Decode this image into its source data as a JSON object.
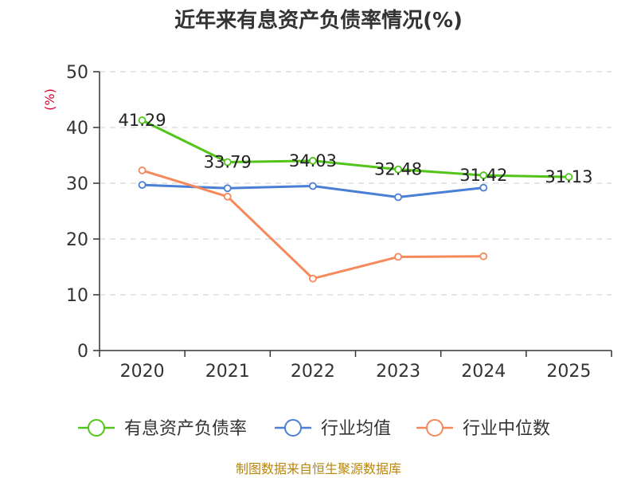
{
  "chart_data": {
    "type": "line",
    "title": "近年来有息资产负债率情况(%)",
    "ylabel": "(%)",
    "xlabel": "",
    "categories": [
      "2020",
      "2021",
      "2022",
      "2023",
      "2024",
      "2025"
    ],
    "ylim": [
      0,
      50
    ],
    "yticks": [
      "0",
      "10",
      "20",
      "30",
      "40",
      "50"
    ],
    "grid": true,
    "legend_position": "bottom",
    "series": [
      {
        "name": "有息资产负债率",
        "color": "#52c41a",
        "values": [
          41.29,
          33.79,
          34.03,
          32.48,
          31.42,
          31.13
        ],
        "labels": [
          "41.29",
          "33.79",
          "34.03",
          "32.48",
          "31.42",
          "31.13"
        ]
      },
      {
        "name": "行业均值",
        "color": "#4a7fd6",
        "values": [
          29.7,
          29.1,
          29.5,
          27.5,
          29.2,
          null
        ]
      },
      {
        "name": "行业中位数",
        "color": "#f5895c",
        "values": [
          32.3,
          27.6,
          12.9,
          16.8,
          16.9,
          null
        ]
      }
    ],
    "source": "制图数据来自恒生聚源数据库"
  }
}
